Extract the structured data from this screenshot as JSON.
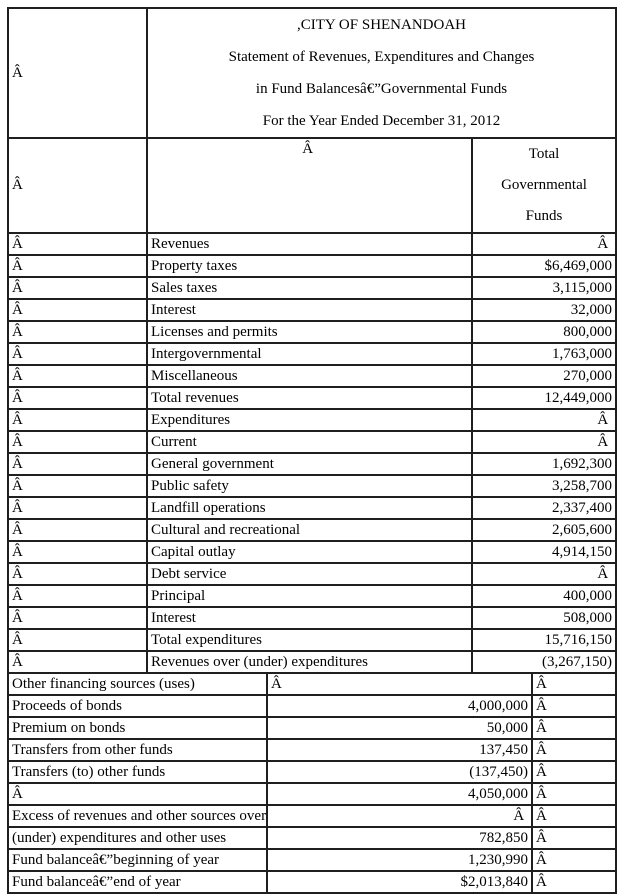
{
  "document": {
    "title_lines": [
      ",CITY OF SHENANDOAH",
      "Statement of Revenues, Expenditures and Changes",
      "in Fund Balancesâ€”Governmental Funds",
      "For the Year Ended December 31, 2012"
    ],
    "header": {
      "top_left_blank": "Â ",
      "left_blank": "Â ",
      "middle_blank": "Â ",
      "amount_column_lines": [
        "Total",
        "Governmental",
        "Funds"
      ]
    },
    "main_rows": [
      {
        "blank": "Â ",
        "label": "Revenues",
        "value": "Â "
      },
      {
        "blank": "Â ",
        "label": "Property taxes",
        "value": "$6,469,000"
      },
      {
        "blank": "Â ",
        "label": "Sales taxes",
        "value": "3,115,000"
      },
      {
        "blank": "Â ",
        "label": "Interest",
        "value": "32,000"
      },
      {
        "blank": "Â ",
        "label": "Licenses and permits",
        "value": "800,000"
      },
      {
        "blank": "Â ",
        "label": "Intergovernmental",
        "value": "1,763,000"
      },
      {
        "blank": "Â ",
        "label": "Miscellaneous",
        "value": "270,000"
      },
      {
        "blank": "Â ",
        "label": "Total revenues",
        "value": "12,449,000"
      },
      {
        "blank": "Â ",
        "label": "Expenditures",
        "value": "Â "
      },
      {
        "blank": "Â ",
        "label": "Current",
        "value": "Â "
      },
      {
        "blank": "Â ",
        "label": "General government",
        "value": "1,692,300"
      },
      {
        "blank": "Â ",
        "label": "Public safety",
        "value": "3,258,700"
      },
      {
        "blank": "Â ",
        "label": "Landfill operations",
        "value": "2,337,400"
      },
      {
        "blank": "Â ",
        "label": "Cultural and recreational",
        "value": "2,605,600"
      },
      {
        "blank": "Â ",
        "label": "Capital outlay",
        "value": "4,914,150"
      },
      {
        "blank": "Â ",
        "label": "Debt service",
        "value": "Â "
      },
      {
        "blank": "Â ",
        "label": "Principal",
        "value": "400,000"
      },
      {
        "blank": "Â ",
        "label": "Interest",
        "value": "508,000"
      },
      {
        "blank": "Â ",
        "label": "Total expenditures",
        "value": "15,716,150"
      },
      {
        "blank": "Â ",
        "label": "Revenues over (under) expenditures",
        "value": "(3,267,150)"
      }
    ],
    "other_rows": [
      {
        "label": "Other financing sources (uses)",
        "value": "Â ",
        "value_align": "left",
        "tail": "Â "
      },
      {
        "label": "Proceeds of bonds",
        "value": "4,000,000",
        "value_align": "right",
        "tail": "Â "
      },
      {
        "label": "Premium on bonds",
        "value": "50,000",
        "value_align": "right",
        "tail": "Â "
      },
      {
        "label": "Transfers from other funds",
        "value": "137,450",
        "value_align": "right",
        "tail": "Â "
      },
      {
        "label": "Transfers (to) other funds",
        "value": "(137,450)",
        "value_align": "right",
        "tail": "Â "
      },
      {
        "label": "Â ",
        "value": "4,050,000",
        "value_align": "right",
        "tail": "Â "
      },
      {
        "label": "Excess of revenues and other sources over",
        "value": "Â ",
        "value_align": "right",
        "tail": "Â "
      },
      {
        "label": "(under) expenditures and other uses",
        "value": "782,850",
        "value_align": "right",
        "tail": "Â "
      },
      {
        "label": "Fund balanceâ€”beginning of year",
        "value": "1,230,990",
        "value_align": "right",
        "tail": "Â "
      },
      {
        "label": "Fund balanceâ€”end of year",
        "value": "$2,013,840",
        "value_align": "right",
        "tail": "Â "
      }
    ]
  }
}
